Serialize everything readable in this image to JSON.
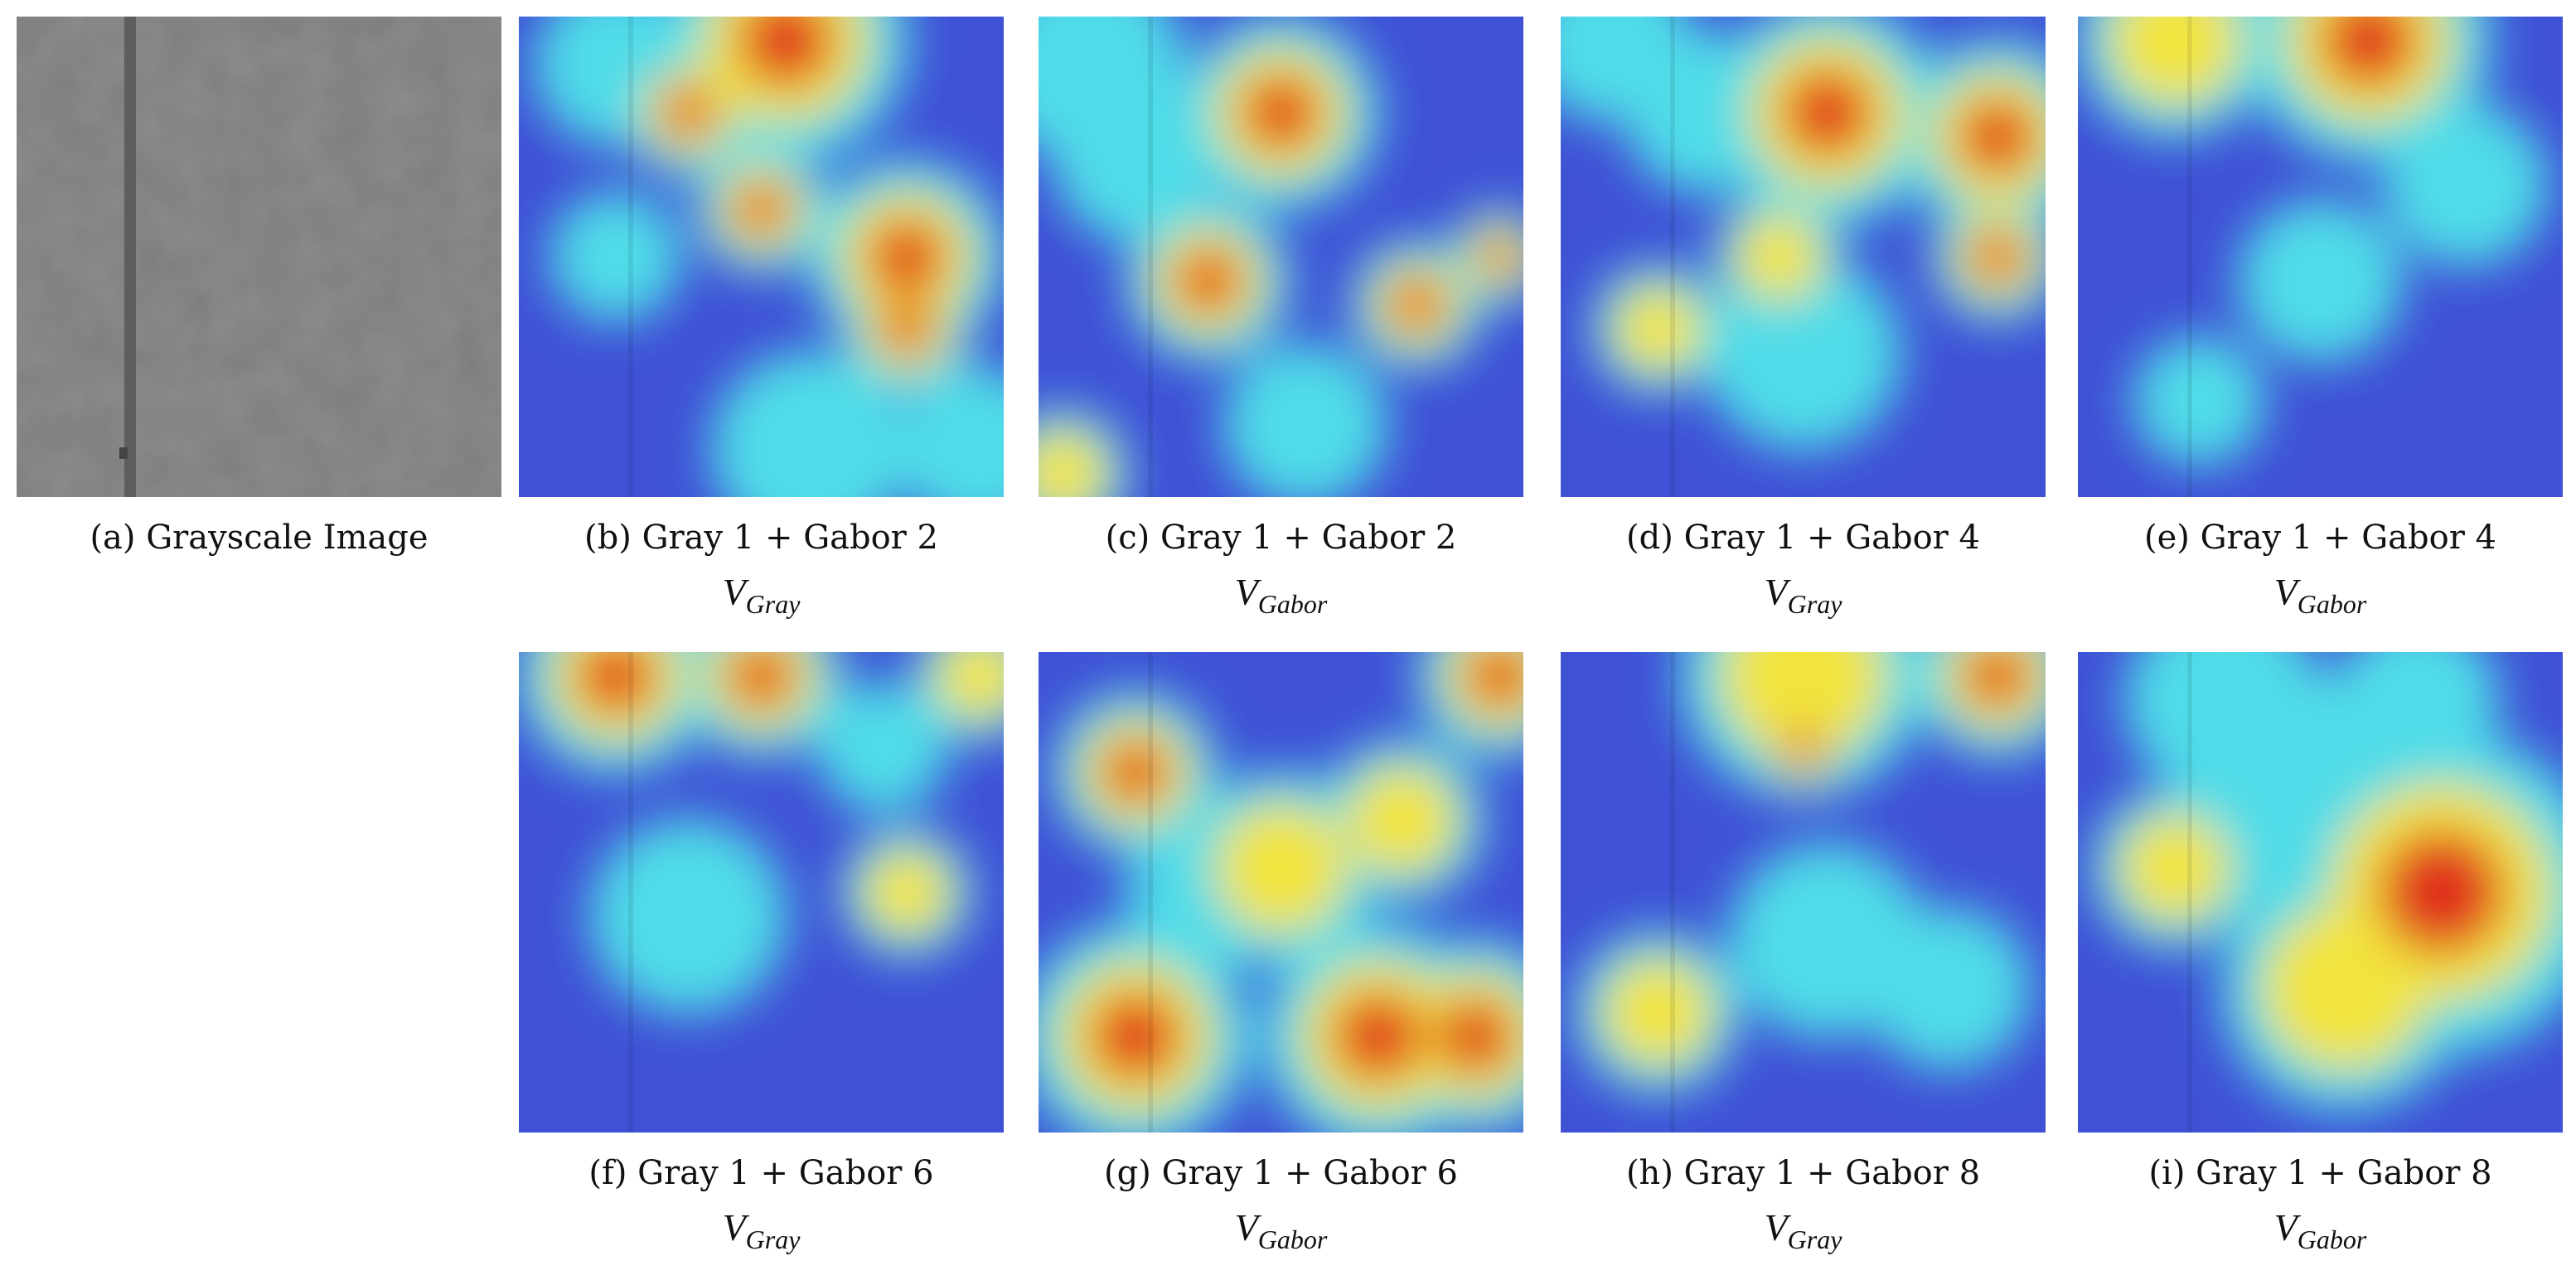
{
  "panels": [
    {
      "caption": "(a) Grayscale Image"
    },
    {
      "caption": "(b) Gray 1 + Gabor 2",
      "variable": "V",
      "subscript": "Gray"
    },
    {
      "caption": "(c) Gray 1 + Gabor 2",
      "variable": "V",
      "subscript": "Gabor"
    },
    {
      "caption": "(d) Gray 1 + Gabor 4",
      "variable": "V",
      "subscript": "Gray"
    },
    {
      "caption": "(e) Gray 1 + Gabor 4",
      "variable": "V",
      "subscript": "Gabor"
    },
    {
      "caption": "(f) Gray 1 + Gabor 6",
      "variable": "V",
      "subscript": "Gray"
    },
    {
      "caption": "(g) Gray 1 + Gabor 6",
      "variable": "V",
      "subscript": "Gabor"
    },
    {
      "caption": "(h) Gray 1 + Gabor 8",
      "variable": "V",
      "subscript": "Gray"
    },
    {
      "caption": "(i) Gray 1 + Gabor 8",
      "variable": "V",
      "subscript": "Gabor"
    }
  ]
}
